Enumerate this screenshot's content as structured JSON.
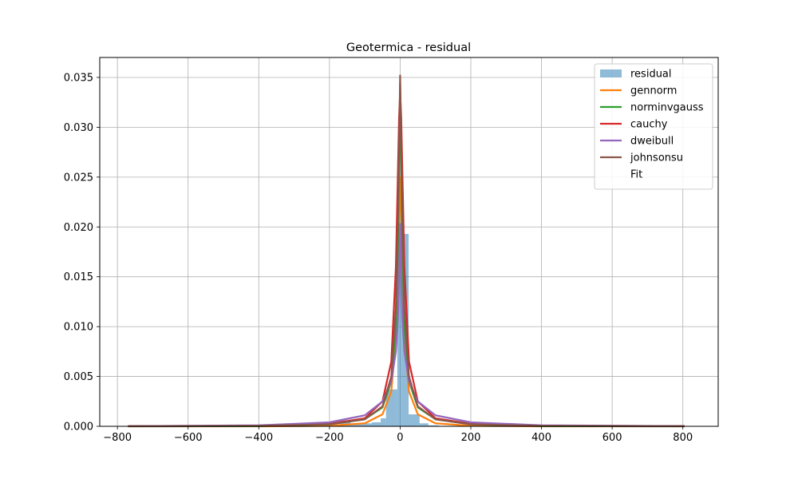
{
  "chart_data": {
    "type": "histogram+line",
    "title": "Geotermica - residual",
    "xlabel": "",
    "ylabel": "",
    "xlim": [
      -850,
      900
    ],
    "ylim": [
      0,
      0.037
    ],
    "x_ticks": [
      -800,
      -600,
      -400,
      -200,
      0,
      200,
      400,
      600,
      800
    ],
    "x_tick_labels": [
      "−800",
      "−600",
      "−400",
      "−200",
      "0",
      "200",
      "400",
      "600",
      "800"
    ],
    "y_ticks": [
      0.0,
      0.005,
      0.01,
      0.015,
      0.02,
      0.025,
      0.03,
      0.035
    ],
    "y_tick_labels": [
      "0.000",
      "0.005",
      "0.010",
      "0.015",
      "0.020",
      "0.025",
      "0.030",
      "0.035"
    ],
    "grid": true,
    "legend_position": "upper right",
    "histogram": {
      "name": "residual",
      "color": "#1f77b4",
      "alpha": 0.5,
      "bins": [
        {
          "x0": -170,
          "x1": -140,
          "y": 0.0006
        },
        {
          "x0": -140,
          "x1": -110,
          "y": 0.0003
        },
        {
          "x0": -110,
          "x1": -80,
          "y": 0.0003
        },
        {
          "x0": -80,
          "x1": -55,
          "y": 0.0004
        },
        {
          "x0": -55,
          "x1": -40,
          "y": 0.0008
        },
        {
          "x0": -40,
          "x1": -8,
          "y": 0.0037
        },
        {
          "x0": -8,
          "x1": 3,
          "y": 0.0166
        },
        {
          "x0": 3,
          "x1": 24,
          "y": 0.0193
        },
        {
          "x0": 24,
          "x1": 55,
          "y": 0.0012
        },
        {
          "x0": 55,
          "x1": 80,
          "y": 0.0003
        },
        {
          "x0": 80,
          "x1": 110,
          "y": 0.0001
        }
      ]
    },
    "series": [
      {
        "name": "gennorm",
        "color": "#ff7f0e",
        "x": [
          -770,
          -400,
          -200,
          -100,
          -50,
          -25,
          -12,
          -6,
          -3,
          0,
          3,
          6,
          12,
          25,
          50,
          100,
          200,
          400,
          805
        ],
        "y": [
          0.0,
          0.0,
          5e-05,
          0.0003,
          0.0012,
          0.0035,
          0.009,
          0.016,
          0.021,
          0.025,
          0.021,
          0.016,
          0.009,
          0.0035,
          0.0012,
          0.0003,
          5e-05,
          0.0,
          0.0
        ]
      },
      {
        "name": "norminvgauss",
        "color": "#2ca02c",
        "x": [
          -770,
          -400,
          -200,
          -100,
          -50,
          -25,
          -12,
          -6,
          -3,
          0,
          3,
          6,
          12,
          25,
          50,
          100,
          200,
          400,
          805
        ],
        "y": [
          0.0,
          2e-05,
          0.0002,
          0.0007,
          0.0019,
          0.0045,
          0.01,
          0.018,
          0.026,
          0.0345,
          0.026,
          0.018,
          0.01,
          0.0045,
          0.0019,
          0.0007,
          0.0002,
          2e-05,
          0.0
        ]
      },
      {
        "name": "cauchy",
        "color": "#d62728",
        "x": [
          -770,
          -400,
          -200,
          -100,
          -50,
          -25,
          -12,
          -6,
          -3,
          0,
          3,
          6,
          12,
          25,
          50,
          100,
          200,
          400,
          805
        ],
        "y": [
          2e-05,
          6e-05,
          0.00025,
          0.0008,
          0.0025,
          0.0065,
          0.016,
          0.026,
          0.031,
          0.0335,
          0.031,
          0.026,
          0.016,
          0.0065,
          0.0025,
          0.0008,
          0.00025,
          6e-05,
          2e-05
        ]
      },
      {
        "name": "dweibull",
        "color": "#9467bd",
        "x": [
          -770,
          -400,
          -200,
          -100,
          -50,
          -25,
          -12,
          -6,
          -3,
          0,
          3,
          6,
          12,
          25,
          50,
          100,
          200,
          400,
          805
        ],
        "y": [
          1e-05,
          0.0001,
          0.0004,
          0.0011,
          0.0025,
          0.0045,
          0.0075,
          0.011,
          0.015,
          0.0203,
          0.015,
          0.011,
          0.0075,
          0.0045,
          0.0025,
          0.0011,
          0.0004,
          0.0001,
          1e-05
        ]
      },
      {
        "name": "johnsonsu",
        "color": "#8c564b",
        "x": [
          -770,
          -400,
          -200,
          -100,
          -50,
          -25,
          -12,
          -6,
          -3,
          0,
          3,
          6,
          12,
          25,
          50,
          100,
          200,
          400,
          805
        ],
        "y": [
          1e-05,
          5e-05,
          0.0002,
          0.0007,
          0.002,
          0.005,
          0.012,
          0.021,
          0.028,
          0.0352,
          0.028,
          0.021,
          0.012,
          0.005,
          0.002,
          0.0007,
          0.0002,
          5e-05,
          1e-05
        ]
      }
    ],
    "legend_entries": [
      "residual",
      "gennorm",
      "norminvgauss",
      "cauchy",
      "dweibull",
      "johnsonsu",
      "Fit"
    ]
  }
}
